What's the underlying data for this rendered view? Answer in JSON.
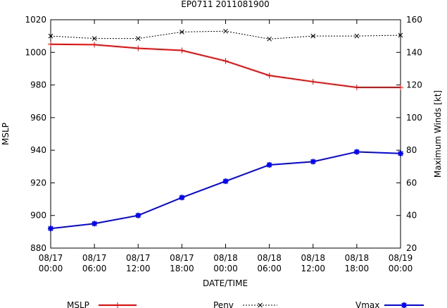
{
  "chart_data": {
    "type": "line",
    "title": "EP0711 2011081900",
    "xlabel": "DATE/TIME",
    "ylabel_left": "MSLP",
    "ylabel_right": "Maximum Winds [kt]",
    "x": [
      [
        "08/17",
        "00:00"
      ],
      [
        "08/17",
        "06:00"
      ],
      [
        "08/17",
        "12:00"
      ],
      [
        "08/17",
        "18:00"
      ],
      [
        "08/18",
        "00:00"
      ],
      [
        "08/18",
        "06:00"
      ],
      [
        "08/18",
        "12:00"
      ],
      [
        "08/18",
        "18:00"
      ],
      [
        "08/19",
        "00:00"
      ]
    ],
    "y_left": {
      "min": 880,
      "max": 1020,
      "ticks": [
        880,
        900,
        920,
        940,
        960,
        980,
        1000,
        1020
      ]
    },
    "y_right": {
      "min": 20,
      "max": 160,
      "ticks": [
        20,
        40,
        60,
        80,
        100,
        120,
        140,
        160
      ]
    },
    "grid": false,
    "legend_position": "bottom",
    "series": [
      {
        "name": "MSLP",
        "axis": "left",
        "color": "#ff0000",
        "marker": "plus",
        "dashed": false,
        "values": [
          1005,
          1004.7,
          1002.5,
          1001.2,
          994.7,
          985.8,
          982,
          978.5,
          978.5
        ]
      },
      {
        "name": "Penv",
        "axis": "left",
        "color": "#000000",
        "marker": "x",
        "dashed": true,
        "values": [
          1010,
          1008.5,
          1008.5,
          1012.5,
          1013,
          1008.2,
          1010,
          1010,
          1010.5
        ]
      },
      {
        "name": "Vmax",
        "axis": "right",
        "color": "#0000ff",
        "marker": "star",
        "dashed": false,
        "values": [
          32,
          35,
          40,
          51,
          61,
          71,
          73,
          79,
          78
        ]
      }
    ]
  }
}
